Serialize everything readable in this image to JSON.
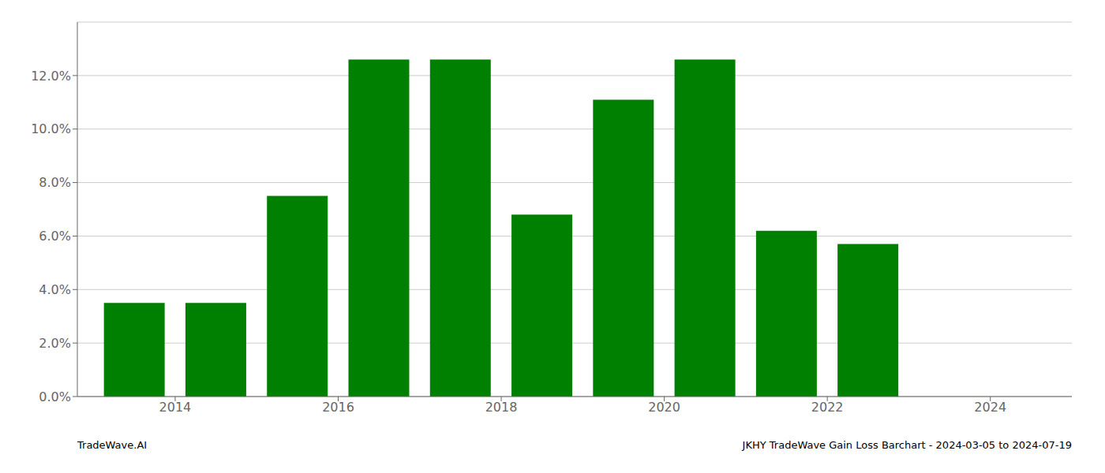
{
  "chart_data": {
    "type": "bar",
    "x": [
      2013,
      2014,
      2015,
      2016,
      2017,
      2018,
      2019,
      2020,
      2021,
      2022
    ],
    "values": [
      0.035,
      0.035,
      0.075,
      0.126,
      0.126,
      0.068,
      0.111,
      0.126,
      0.062,
      0.057
    ],
    "color": "#008000",
    "xlim": [
      2012.3,
      2024.5
    ],
    "xticks": [
      {
        "value": 2013.5,
        "label": "2014"
      },
      {
        "value": 2015.5,
        "label": "2016"
      },
      {
        "value": 2017.5,
        "label": "2018"
      },
      {
        "value": 2019.5,
        "label": "2020"
      },
      {
        "value": 2021.5,
        "label": "2022"
      },
      {
        "value": 2023.5,
        "label": "2024"
      }
    ],
    "ylim": [
      0,
      0.14
    ],
    "yticks": [
      {
        "value": 0.0,
        "label": "0.0%"
      },
      {
        "value": 0.02,
        "label": "2.0%"
      },
      {
        "value": 0.04,
        "label": "4.0%"
      },
      {
        "value": 0.06,
        "label": "6.0%"
      },
      {
        "value": 0.08,
        "label": "8.0%"
      },
      {
        "value": 0.1,
        "label": "10.0%"
      },
      {
        "value": 0.12,
        "label": "12.0%"
      }
    ],
    "grid": true,
    "annotations": [
      "TradeWave.AI",
      "JKHY TradeWave Gain Loss Barchart - 2024-03-05 to 2024-07-19"
    ]
  }
}
